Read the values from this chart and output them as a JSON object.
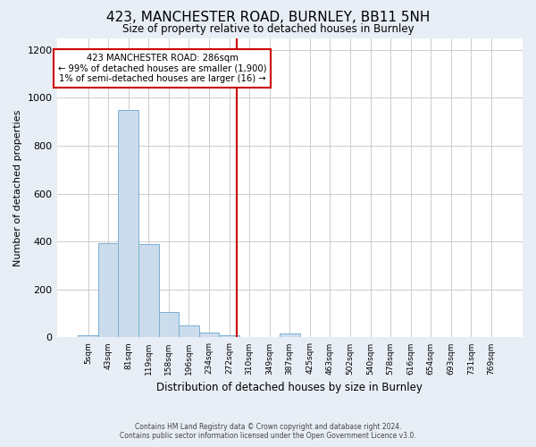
{
  "title": "423, MANCHESTER ROAD, BURNLEY, BB11 5NH",
  "subtitle": "Size of property relative to detached houses in Burnley",
  "xlabel": "Distribution of detached houses by size in Burnley",
  "ylabel": "Number of detached properties",
  "bar_labels": [
    "5sqm",
    "43sqm",
    "81sqm",
    "119sqm",
    "158sqm",
    "196sqm",
    "234sqm",
    "272sqm",
    "310sqm",
    "349sqm",
    "387sqm",
    "425sqm",
    "463sqm",
    "502sqm",
    "540sqm",
    "578sqm",
    "616sqm",
    "654sqm",
    "693sqm",
    "731sqm",
    "769sqm"
  ],
  "bar_heights": [
    10,
    395,
    950,
    390,
    107,
    50,
    22,
    10,
    0,
    0,
    15,
    0,
    0,
    0,
    0,
    0,
    0,
    0,
    0,
    0,
    0
  ],
  "bar_color": "#cddcec",
  "bar_edge_color": "#7aafd4",
  "vline_color": "#cc0000",
  "ylim": [
    0,
    1250
  ],
  "yticks": [
    0,
    200,
    400,
    600,
    800,
    1000,
    1200
  ],
  "annotation_title": "423 MANCHESTER ROAD: 286sqm",
  "annotation_line1": "← 99% of detached houses are smaller (1,900)",
  "annotation_line2": "1% of semi-detached houses are larger (16) →",
  "annotation_box_color": "#ffffff",
  "annotation_box_edge": "#cc0000",
  "footer_line1": "Contains HM Land Registry data © Crown copyright and database right 2024.",
  "footer_line2": "Contains public sector information licensed under the Open Government Licence v3.0.",
  "fig_bg_color": "#e8eef5",
  "plot_bg_color": "#ffffff"
}
